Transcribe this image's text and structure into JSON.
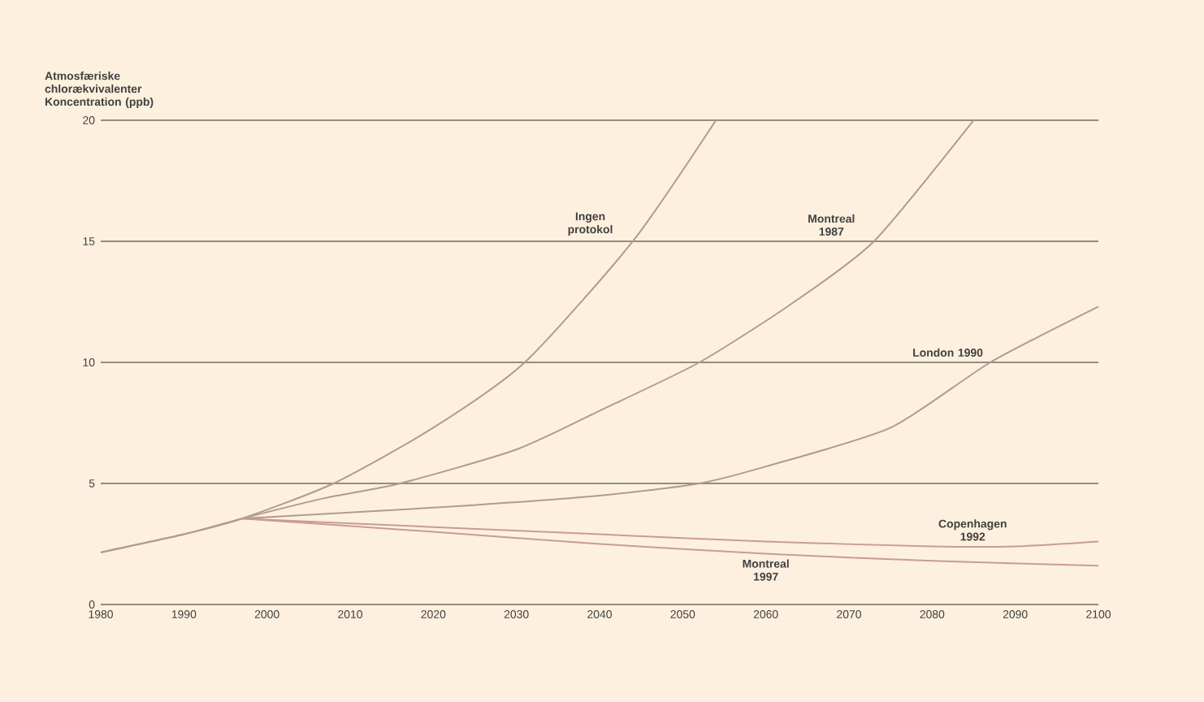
{
  "chart_data": {
    "type": "line",
    "ylabel": "Atmosfæriske chlorækvivalenter Koncentration (ppb)",
    "xlim": [
      1980,
      2100
    ],
    "ylim": [
      0,
      20
    ],
    "xticks": [
      1980,
      1990,
      2000,
      2010,
      2020,
      2030,
      2040,
      2050,
      2060,
      2070,
      2080,
      2090,
      2100
    ],
    "yticks": [
      0,
      5,
      10,
      15,
      20
    ],
    "grid": "y",
    "series": [
      {
        "name": "Ingen protokol",
        "color": "#b39a8e",
        "x": [
          1980,
          1990,
          1997,
          2008,
          2020,
          2031,
          2044,
          2054
        ],
        "values": [
          2.15,
          2.9,
          3.55,
          5,
          7.3,
          10,
          15,
          20
        ]
      },
      {
        "name": "Montreal 1987",
        "color": "#b39a8e",
        "x": [
          1980,
          1990,
          1997,
          2007,
          2016,
          2030,
          2040,
          2052,
          2063,
          2073,
          2085
        ],
        "values": [
          2.15,
          2.9,
          3.55,
          4.4,
          5,
          6.4,
          8,
          10,
          12.4,
          15,
          20
        ]
      },
      {
        "name": "London 1990",
        "color": "#b39a8e",
        "x": [
          1997,
          2020,
          2040,
          2052,
          2060,
          2075,
          2087,
          2100
        ],
        "values": [
          3.55,
          4.0,
          4.5,
          5,
          5.7,
          7.3,
          10,
          12.3
        ]
      },
      {
        "name": "Copenhagen 1992",
        "color": "#c99a9a",
        "x": [
          1997,
          2020,
          2040,
          2060,
          2080,
          2090,
          2100
        ],
        "values": [
          3.55,
          3.2,
          2.9,
          2.6,
          2.4,
          2.4,
          2.6
        ]
      },
      {
        "name": "Montreal 1997",
        "color": "#c99a9a",
        "x": [
          1997,
          2020,
          2040,
          2060,
          2080,
          2100
        ],
        "values": [
          3.55,
          3.0,
          2.5,
          2.1,
          1.8,
          1.6
        ]
      }
    ]
  }
}
